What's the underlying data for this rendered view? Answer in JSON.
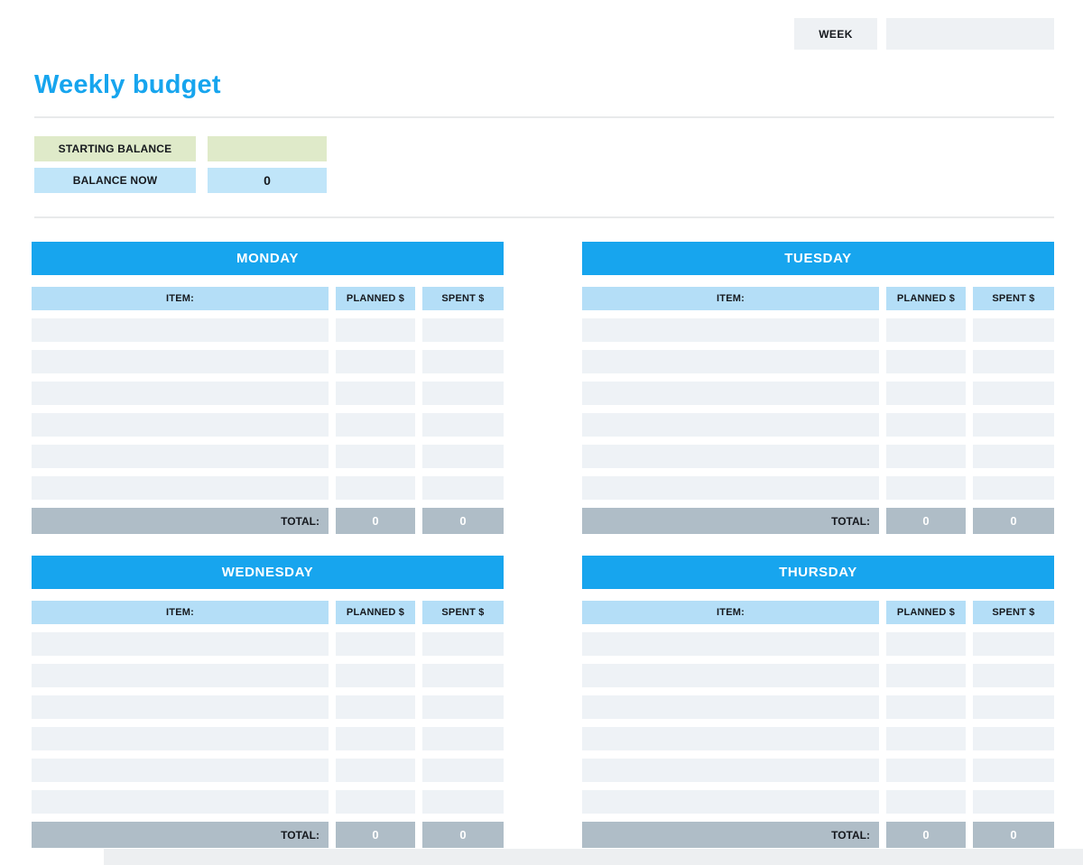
{
  "colors": {
    "accent_blue": "#17a5ee",
    "column_header_blue": "#b4def7",
    "balance_blue": "#c0e5f9",
    "balance_green": "#dfeac9",
    "row_fill": "#eef2f6",
    "total_gray": "#afbdc7",
    "field_gray": "#eef1f4"
  },
  "header": {
    "week_label": "WEEK",
    "week_value": ""
  },
  "page_title": "Weekly budget",
  "balance": {
    "rows": [
      {
        "label": "STARTING BALANCE",
        "value": ""
      },
      {
        "label": "BALANCE NOW",
        "value": "0"
      }
    ]
  },
  "table_columns": {
    "item": "ITEM:",
    "planned": "PLANNED $",
    "spent": "SPENT $"
  },
  "total_label": "TOTAL:",
  "rows_per_day": 6,
  "days": [
    {
      "name": "MONDAY",
      "rows": [
        [
          "",
          "",
          ""
        ],
        [
          "",
          "",
          ""
        ],
        [
          "",
          "",
          ""
        ],
        [
          "",
          "",
          ""
        ],
        [
          "",
          "",
          ""
        ],
        [
          "",
          "",
          ""
        ]
      ],
      "planned_total": "0",
      "spent_total": "0"
    },
    {
      "name": "TUESDAY",
      "rows": [
        [
          "",
          "",
          ""
        ],
        [
          "",
          "",
          ""
        ],
        [
          "",
          "",
          ""
        ],
        [
          "",
          "",
          ""
        ],
        [
          "",
          "",
          ""
        ],
        [
          "",
          "",
          ""
        ]
      ],
      "planned_total": "0",
      "spent_total": "0"
    },
    {
      "name": "WEDNESDAY",
      "rows": [
        [
          "",
          "",
          ""
        ],
        [
          "",
          "",
          ""
        ],
        [
          "",
          "",
          ""
        ],
        [
          "",
          "",
          ""
        ],
        [
          "",
          "",
          ""
        ],
        [
          "",
          "",
          ""
        ]
      ],
      "planned_total": "0",
      "spent_total": "0"
    },
    {
      "name": "THURSDAY",
      "rows": [
        [
          "",
          "",
          ""
        ],
        [
          "",
          "",
          ""
        ],
        [
          "",
          "",
          ""
        ],
        [
          "",
          "",
          ""
        ],
        [
          "",
          "",
          ""
        ],
        [
          "",
          "",
          ""
        ]
      ],
      "planned_total": "0",
      "spent_total": "0"
    }
  ]
}
